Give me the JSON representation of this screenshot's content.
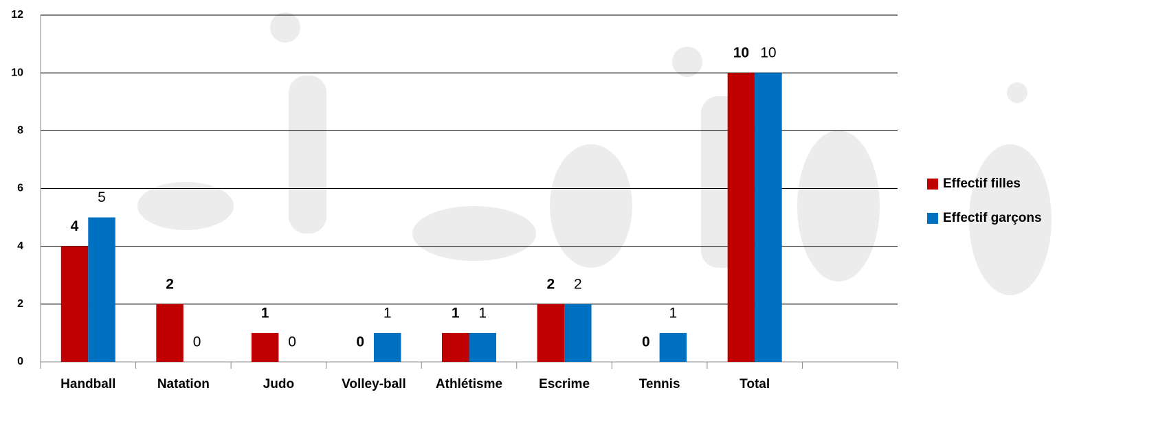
{
  "chart_data": {
    "type": "bar",
    "categories": [
      "Handball",
      "Natation",
      "Judo",
      "Volley-ball",
      "Athlétisme",
      "Escrime",
      "Tennis",
      "Total",
      null
    ],
    "series": [
      {
        "name": "Effectif filles",
        "color": "#c00000",
        "values": [
          4,
          2,
          1,
          0,
          1,
          2,
          0,
          10,
          null
        ]
      },
      {
        "name": "Effectif garçons",
        "color": "#0070c0",
        "values": [
          5,
          0,
          0,
          1,
          1,
          2,
          1,
          10,
          null
        ]
      }
    ],
    "ylim": [
      0,
      12
    ],
    "yticks": [
      0,
      2,
      4,
      6,
      8,
      10,
      12
    ],
    "grid": true,
    "legend": "right"
  }
}
